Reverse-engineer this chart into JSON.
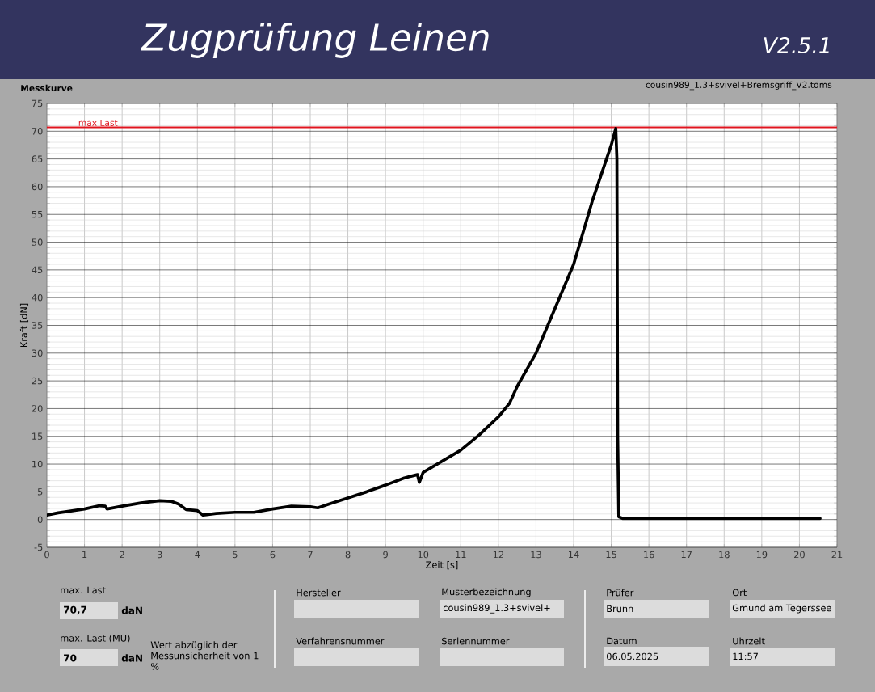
{
  "chart_data": {
    "type": "line",
    "title": "Zugprüfung Leinen",
    "subtitle": "V2.5.1",
    "xlabel": "Zeit [s]",
    "ylabel": "Kraft [dN]",
    "x": [
      0,
      0.3,
      0.6,
      1,
      1.4,
      1.55,
      1.6,
      2,
      2.5,
      3,
      3.3,
      3.5,
      3.7,
      4,
      4.15,
      4.5,
      5,
      5.5,
      6,
      6.5,
      7,
      7.2,
      7.5,
      8,
      8.5,
      9,
      9.5,
      9.85,
      9.9,
      10,
      10.5,
      11,
      11.5,
      12,
      12.3,
      12.5,
      13,
      13.5,
      14,
      14.5,
      15,
      15.12,
      15.15,
      15.17,
      15.2,
      15.3,
      16,
      17,
      18,
      19,
      20,
      20.55
    ],
    "series": [
      {
        "color": "#000000",
        "values": [
          0.8,
          1.2,
          1.5,
          1.9,
          2.5,
          2.4,
          1.9,
          2.4,
          3.0,
          3.4,
          3.3,
          2.8,
          1.8,
          1.6,
          0.8,
          1.1,
          1.3,
          1.3,
          1.9,
          2.4,
          2.3,
          2.1,
          2.8,
          3.9,
          5.0,
          6.2,
          7.5,
          8.1,
          6.7,
          8.5,
          10.5,
          12.5,
          15.3,
          18.5,
          21,
          24,
          30,
          38,
          46,
          57.5,
          67.5,
          70.5,
          65,
          15,
          0.5,
          0.2,
          0.2,
          0.2,
          0.2,
          0.2,
          0.2,
          0.2
        ]
      }
    ],
    "xlim": [
      0,
      21
    ],
    "ylim": [
      -5,
      75
    ],
    "xticks": [
      0,
      1,
      2,
      3,
      4,
      5,
      6,
      7,
      8,
      9,
      10,
      11,
      12,
      13,
      14,
      15,
      16,
      17,
      18,
      19,
      20,
      21
    ],
    "yticks": [
      -5,
      0,
      5,
      10,
      15,
      20,
      25,
      30,
      35,
      40,
      45,
      50,
      55,
      60,
      65,
      70,
      75
    ],
    "grid": true,
    "line_style": "solid",
    "ref_lines": [
      {
        "axis": "y",
        "value": 70.7,
        "label": "max Last",
        "color": "#e0141e"
      }
    ],
    "annotations": [
      "Messkurve",
      "cousin989_1.3+svivel+Bremsgriff_V2.tdms",
      "max. Last",
      "70,7",
      "daN",
      "max. Last (MU)",
      "70",
      "daN",
      "Wert abzüglich der Messunsicherheit von 1 %",
      "Hersteller",
      "Musterbezeichnung",
      "cousin989_1.3+svivel+",
      "Verfahrensnummer",
      "Seriennummer",
      "Prüfer",
      "Brunn",
      "Ort",
      "Gmund am Tegerssee",
      "Datum",
      "06.05.2025",
      "Uhrzeit",
      "11:57"
    ]
  }
}
